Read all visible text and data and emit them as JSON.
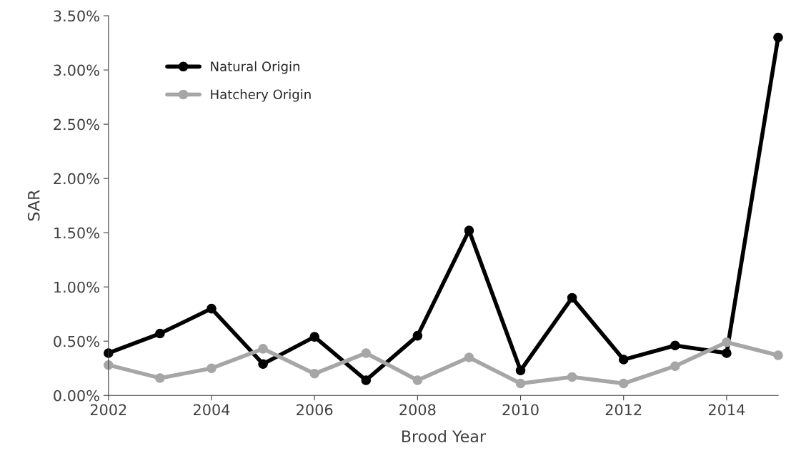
{
  "chart_data": {
    "type": "line",
    "xlabel": "Brood Year",
    "ylabel": "SAR",
    "x": [
      2002,
      2003,
      2004,
      2005,
      2006,
      2007,
      2008,
      2009,
      2010,
      2011,
      2012,
      2013,
      2014,
      2015
    ],
    "series": [
      {
        "name": "Natural Origin",
        "color": "#000000",
        "values": [
          0.39,
          0.57,
          0.8,
          0.29,
          0.54,
          0.14,
          0.55,
          1.52,
          0.23,
          0.9,
          0.33,
          0.46,
          0.39,
          3.3
        ]
      },
      {
        "name": "Hatchery Origin",
        "color": "#a6a6a6",
        "values": [
          0.28,
          0.16,
          0.25,
          0.43,
          0.2,
          0.39,
          0.14,
          0.35,
          0.11,
          0.17,
          0.11,
          0.27,
          0.49,
          0.37
        ]
      }
    ],
    "xlim": [
      2002,
      2015
    ],
    "xticks": [
      2002,
      2004,
      2006,
      2008,
      2010,
      2012,
      2014
    ],
    "ylim": [
      0,
      3.5
    ],
    "yticks": [
      {
        "value": 0,
        "label": "0.00%"
      },
      {
        "value": 0.5,
        "label": "0.50%"
      },
      {
        "value": 1.0,
        "label": "1.00%"
      },
      {
        "value": 1.5,
        "label": "1.50%"
      },
      {
        "value": 2.0,
        "label": "2.00%"
      },
      {
        "value": 2.5,
        "label": "2.50%"
      },
      {
        "value": 3.0,
        "label": "3.00%"
      },
      {
        "value": 3.5,
        "label": "3.50%"
      }
    ],
    "grid": false,
    "legend": "top left",
    "marker": "circle",
    "line_style": "solid"
  }
}
